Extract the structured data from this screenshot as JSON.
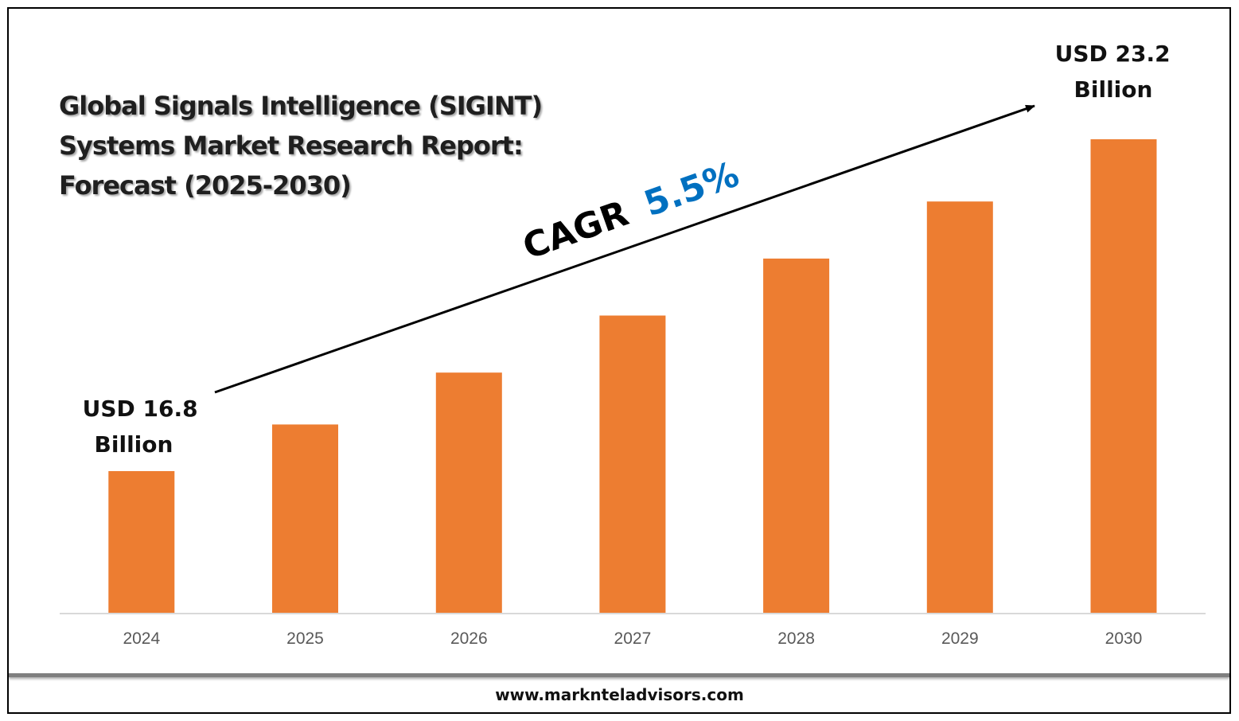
{
  "title_lines": [
    "Global Signals Intelligence (SIGINT)",
    "Systems Market Research Report:",
    "Forecast (2025-2030)"
  ],
  "footer": "www.marknteladvisors.com",
  "cagr": {
    "label": "CAGR",
    "value": "5.5%",
    "label_color": "#000000",
    "value_color": "#0070c0"
  },
  "start_label": [
    "USD 16.8",
    "Billion"
  ],
  "end_label": [
    "USD 23.2",
    "Billion"
  ],
  "colors": {
    "bar": "#ed7d31",
    "axis": "#d9d9d9",
    "tick": "#595959"
  },
  "chart_data": {
    "type": "bar",
    "title": "Global Signals Intelligence (SIGINT) Systems Market Research Report: Forecast (2025-2030)",
    "categories": [
      "2024",
      "2025",
      "2026",
      "2027",
      "2028",
      "2029",
      "2030"
    ],
    "values": [
      16.8,
      17.7,
      18.7,
      19.8,
      20.9,
      22.0,
      23.2
    ],
    "unit": "USD Billion",
    "ylim": [
      0,
      23.2
    ],
    "grid": false,
    "legend": "none",
    "annotations": [
      "USD 16.8 Billion",
      "USD 23.2 Billion",
      "CAGR 5.5%"
    ]
  }
}
